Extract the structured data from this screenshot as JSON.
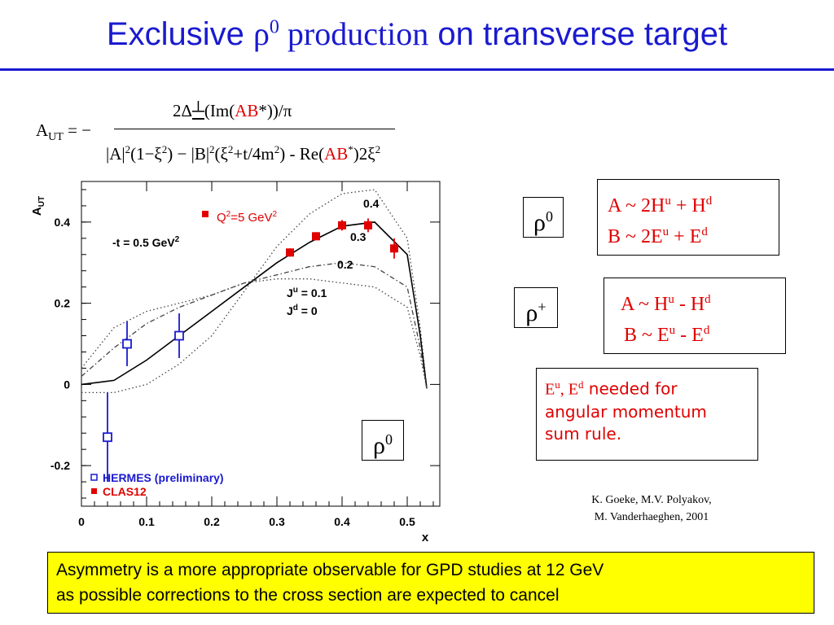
{
  "title": {
    "part1": "Exclusive ",
    "rho": "ρ",
    "rho_sup": "0",
    "production": " production",
    "part2": " on transverse target"
  },
  "formula": {
    "lhs": "A",
    "lhs_sub": "UT",
    "eq": " = −",
    "num_a": "2Δ",
    "num_perp": "┴",
    "num_b": "(Im(",
    "num_ab": "AB",
    "num_c": "*))/π",
    "den_a": "|A|",
    "den_s1": "2",
    "den_b": "(1−ξ",
    "den_s2": "2",
    "den_c": ") − |B|",
    "den_s3": "2",
    "den_d": "(ξ",
    "den_s4": "2",
    "den_e": "+t/4m",
    "den_s5": "2",
    "den_f": ") - Re(",
    "den_ab": "AB",
    "den_g": "*",
    "den_h": ")2ξ",
    "den_s6": "2"
  },
  "rho0_box": {
    "rho": "ρ",
    "sup": "0"
  },
  "rho0_gpd": {
    "a": "A ~  2H",
    "a_sup1": "u",
    "a2": " + H",
    "a_sup2": "d",
    "b": "B ~  2E",
    "b_sup1": "u",
    "b2": " + E",
    "b_sup2": "d"
  },
  "rhop_box": {
    "rho": "ρ",
    "sup": "+"
  },
  "rhop_gpd": {
    "a": "A ~  H",
    "a_sup1": "u",
    "a2": " - H",
    "a_sup2": "d",
    "b": "B ~  E",
    "b_sup1": "u",
    "b2": " - E",
    "b_sup2": "d"
  },
  "note": {
    "e": "E",
    "e_sup1": "u",
    "comma": ", E",
    "e_sup2": "d",
    "text1": " needed for",
    "text2": "angular momentum",
    "text3": "sum rule."
  },
  "reference": {
    "line1": "K. Goeke, M.V. Polyakov,",
    "line2": "M. Vanderhaeghen, 2001"
  },
  "bottom_text": {
    "line1": "Asymmetry is a more appropriate observable for GPD studies at 12 GeV",
    "line2": "as possible corrections to the cross section are expected to cancel"
  },
  "chart_data": {
    "type": "scatter",
    "ylabel": "A",
    "ylabel_sub": "UT",
    "xlabel": "x",
    "xlim": [
      0,
      0.55
    ],
    "ylim": [
      -0.3,
      0.5
    ],
    "x_ticks": [
      0,
      0.1,
      0.2,
      0.3,
      0.4,
      0.5
    ],
    "x_tick_labels": [
      "0",
      "0.1",
      "0.2",
      "0.3",
      "0.4",
      "0.5"
    ],
    "y_ticks": [
      -0.2,
      0,
      0.2,
      0.4
    ],
    "y_tick_labels": [
      "-0.2",
      "0",
      "0.2",
      "0.4"
    ],
    "legend": [
      {
        "name": "HERMES (preliminary)",
        "color": "#1a1ad0",
        "marker": "open-square"
      },
      {
        "name": "CLAS12",
        "color": "#e00000",
        "marker": "filled-square"
      }
    ],
    "q2_label": {
      "text1": "Q",
      "sup": "2",
      "text2": "=5 GeV",
      "sup2": "2"
    },
    "t_label": {
      "text1": "-t = 0.5 GeV",
      "sup": "2"
    },
    "j_labels": {
      "ju": "J",
      "ju_sup": "u",
      "ju_val": " = 0.1",
      "jd": "J",
      "jd_sup": "d",
      "jd_val": " = 0"
    },
    "curve_labels": [
      "0.4",
      "0.3",
      "0.2"
    ],
    "hermes": [
      {
        "x": 0.04,
        "y": -0.13,
        "yerr_lo": 0.11,
        "yerr_hi": 0.11
      },
      {
        "x": 0.07,
        "y": 0.1,
        "yerr_lo": 0.055,
        "yerr_hi": 0.055
      },
      {
        "x": 0.15,
        "y": 0.12,
        "yerr_lo": 0.055,
        "yerr_hi": 0.055
      }
    ],
    "clas12": [
      {
        "x": 0.32,
        "y": 0.325,
        "yerr": 0.01
      },
      {
        "x": 0.36,
        "y": 0.365,
        "yerr": 0.01
      },
      {
        "x": 0.4,
        "y": 0.392,
        "yerr": 0.013
      },
      {
        "x": 0.44,
        "y": 0.392,
        "yerr": 0.017
      },
      {
        "x": 0.48,
        "y": 0.335,
        "yerr": 0.025
      }
    ],
    "curves": [
      {
        "name": "0.4",
        "style": "dotted",
        "x": [
          0,
          0.05,
          0.1,
          0.15,
          0.2,
          0.25,
          0.3,
          0.35,
          0.4,
          0.45,
          0.5,
          0.52,
          0.53
        ],
        "y": [
          -0.02,
          -0.02,
          0.0,
          0.05,
          0.12,
          0.23,
          0.34,
          0.42,
          0.47,
          0.48,
          0.36,
          0.14,
          -0.01
        ]
      },
      {
        "name": "0.3",
        "style": "solid",
        "x": [
          0,
          0.05,
          0.1,
          0.15,
          0.2,
          0.25,
          0.3,
          0.35,
          0.4,
          0.45,
          0.5,
          0.52,
          0.53
        ],
        "y": [
          0.0,
          0.01,
          0.06,
          0.12,
          0.18,
          0.24,
          0.3,
          0.35,
          0.39,
          0.4,
          0.32,
          0.12,
          -0.01
        ]
      },
      {
        "name": "0.2",
        "style": "dashdot",
        "x": [
          0,
          0.05,
          0.1,
          0.15,
          0.2,
          0.25,
          0.3,
          0.35,
          0.4,
          0.45,
          0.5,
          0.52,
          0.53
        ],
        "y": [
          0.02,
          0.09,
          0.15,
          0.19,
          0.22,
          0.25,
          0.27,
          0.29,
          0.3,
          0.29,
          0.24,
          0.09,
          -0.01
        ]
      },
      {
        "name": "0.1",
        "style": "dotted",
        "x": [
          0,
          0.05,
          0.1,
          0.15,
          0.2,
          0.25,
          0.3,
          0.35,
          0.4,
          0.45,
          0.5,
          0.52,
          0.53
        ],
        "y": [
          0.04,
          0.14,
          0.18,
          0.2,
          0.22,
          0.25,
          0.26,
          0.26,
          0.25,
          0.24,
          0.19,
          0.07,
          -0.01
        ]
      }
    ]
  }
}
